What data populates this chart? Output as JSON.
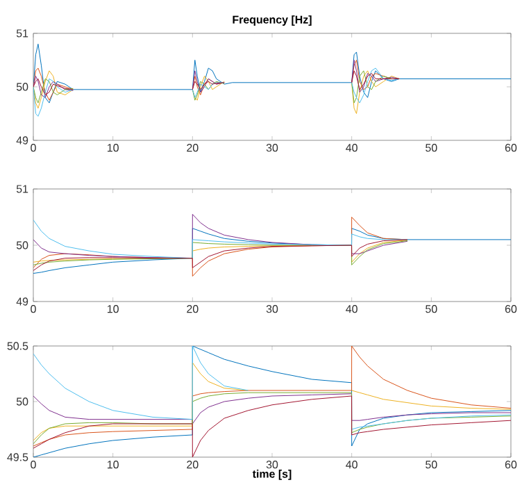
{
  "chart_data": [
    {
      "type": "line",
      "title": "Frequency [Hz]",
      "x": [
        0,
        0.3,
        0.6,
        1,
        1.5,
        2,
        2.5,
        3,
        4,
        5,
        6,
        8,
        20,
        20.3,
        20.6,
        21,
        21.5,
        22,
        22.5,
        23,
        24,
        25,
        27,
        30,
        40,
        40.3,
        40.6,
        41,
        41.5,
        42,
        42.5,
        43,
        44,
        45,
        46,
        48,
        60
      ],
      "xlim": [
        0,
        60
      ],
      "xticks": [
        0,
        10,
        20,
        30,
        40,
        50,
        60
      ],
      "ylim": [
        49,
        51
      ],
      "yticks": [
        49,
        50,
        51
      ],
      "series": [
        {
          "color": "#0072bd",
          "values": [
            50,
            50.6,
            50.8,
            50.4,
            49.8,
            49.7,
            49.9,
            50.1,
            50.05,
            49.95,
            49.95,
            49.95,
            49.95,
            50.5,
            50.2,
            49.9,
            50.1,
            50.35,
            50.3,
            50.15,
            50.05,
            50.08,
            50.08,
            50.08,
            50.08,
            50.6,
            50.65,
            50.2,
            49.9,
            49.8,
            50.1,
            50.3,
            50.15,
            50.1,
            50.15,
            50.15,
            50.15
          ]
        },
        {
          "color": "#d95319",
          "values": [
            50,
            50.3,
            50.35,
            50.2,
            49.9,
            49.75,
            49.9,
            50.05,
            50,
            49.95,
            null,
            null,
            49.95,
            50.2,
            50,
            49.85,
            50.05,
            50.15,
            50.1,
            50.05,
            50.08,
            null,
            null,
            null,
            50.08,
            50.4,
            50.5,
            50.1,
            49.95,
            50,
            50.2,
            50.25,
            50.2,
            50.15,
            50.15,
            null,
            null
          ]
        },
        {
          "color": "#edb120",
          "values": [
            50,
            49.7,
            49.6,
            49.8,
            50.1,
            50.3,
            50.2,
            49.9,
            49.85,
            49.95,
            null,
            null,
            49.95,
            49.8,
            49.75,
            50,
            50.2,
            50.1,
            49.95,
            50,
            50.1,
            null,
            null,
            null,
            50.08,
            49.6,
            49.5,
            49.9,
            50.2,
            50.3,
            50.1,
            50,
            50.1,
            50.2,
            50.15,
            null,
            null
          ]
        },
        {
          "color": "#7e2f8e",
          "values": [
            50,
            50.2,
            50.1,
            49.85,
            49.8,
            50,
            50.1,
            50.05,
            49.95,
            49.93,
            null,
            null,
            49.95,
            50.3,
            50.1,
            49.9,
            50,
            50.15,
            50.1,
            50.05,
            50.08,
            null,
            null,
            null,
            50.08,
            50.5,
            50.3,
            49.9,
            50,
            50.25,
            50.2,
            50.1,
            50.15,
            50.18,
            50.15,
            null,
            null
          ]
        },
        {
          "color": "#77ac30",
          "values": [
            50,
            49.8,
            49.7,
            49.9,
            50.15,
            50.1,
            49.9,
            49.85,
            49.95,
            49.97,
            null,
            null,
            49.95,
            49.75,
            49.85,
            50.1,
            50.05,
            49.95,
            50.05,
            50.1,
            50.06,
            null,
            null,
            null,
            50.08,
            49.7,
            49.8,
            50.2,
            50.3,
            50,
            49.95,
            50.1,
            50.2,
            50.15,
            50.15,
            null,
            null
          ]
        },
        {
          "color": "#4dbeee",
          "values": [
            50,
            49.5,
            49.45,
            49.6,
            49.9,
            50.15,
            50.1,
            50,
            49.9,
            49.95,
            null,
            null,
            49.95,
            49.8,
            49.9,
            50.05,
            50,
            49.95,
            50.05,
            50.08,
            50.08,
            null,
            null,
            null,
            50.08,
            49.9,
            49.8,
            49.7,
            49.85,
            50.1,
            50.3,
            50.35,
            50.15,
            50.12,
            50.15,
            null,
            null
          ]
        },
        {
          "color": "#a2142f",
          "values": [
            50,
            50.1,
            50.15,
            50,
            49.85,
            49.9,
            50.05,
            50.02,
            49.97,
            49.95,
            null,
            null,
            49.95,
            50.1,
            50.05,
            49.95,
            50.05,
            50.1,
            50.05,
            50.07,
            50.08,
            null,
            null,
            null,
            50.08,
            50.3,
            50.2,
            49.95,
            50.05,
            50.2,
            50.25,
            50.15,
            50.15,
            50.15,
            50.15,
            null,
            null
          ]
        }
      ]
    },
    {
      "type": "line",
      "x": [
        0,
        1,
        2,
        4,
        7,
        10,
        15,
        19.99,
        20,
        21,
        22,
        24,
        27,
        30,
        35,
        39.99,
        40,
        41,
        42,
        44,
        47,
        50,
        55,
        60
      ],
      "xlim": [
        0,
        60
      ],
      "xticks": [
        0,
        10,
        20,
        30,
        40,
        50,
        60
      ],
      "ylim": [
        49,
        51
      ],
      "yticks": [
        49,
        50,
        51
      ],
      "series": [
        {
          "color": "#0072bd",
          "values": [
            49.5,
            49.52,
            49.55,
            49.6,
            49.65,
            49.7,
            49.74,
            49.77,
            50.3,
            50.25,
            50.2,
            50.12,
            50.07,
            50.04,
            50.01,
            50,
            50.3,
            50.25,
            50.18,
            50.12,
            50.1,
            50.1,
            50.1,
            50.1
          ]
        },
        {
          "color": "#d95319",
          "values": [
            49.6,
            49.75,
            49.82,
            49.85,
            49.83,
            49.8,
            49.78,
            49.77,
            49.45,
            49.6,
            49.72,
            49.85,
            49.93,
            49.97,
            49.99,
            50,
            50.5,
            50.35,
            50.22,
            50.12,
            50.1,
            null,
            null,
            null
          ]
        },
        {
          "color": "#edb120",
          "values": [
            49.7,
            49.72,
            49.73,
            49.74,
            49.75,
            49.76,
            49.77,
            49.77,
            49.9,
            49.93,
            49.95,
            49.97,
            49.98,
            49.99,
            50,
            50,
            49.7,
            49.85,
            49.95,
            50.05,
            50.09,
            null,
            null,
            null
          ]
        },
        {
          "color": "#7e2f8e",
          "values": [
            50.1,
            49.95,
            49.88,
            49.85,
            49.82,
            49.8,
            49.78,
            49.77,
            50.55,
            50.4,
            50.3,
            50.18,
            50.1,
            50.05,
            50.01,
            50,
            49.85,
            49.85,
            49.9,
            50,
            50.07,
            null,
            null,
            null
          ]
        },
        {
          "color": "#77ac30",
          "values": [
            49.65,
            49.68,
            49.7,
            49.72,
            49.74,
            49.75,
            49.76,
            49.77,
            50.05,
            50.04,
            50.03,
            50.02,
            50.01,
            50,
            50,
            50,
            49.65,
            49.8,
            49.92,
            50.03,
            50.08,
            null,
            null,
            null
          ]
        },
        {
          "color": "#4dbeee",
          "values": [
            50.45,
            50.25,
            50.12,
            49.98,
            49.9,
            49.84,
            49.8,
            49.77,
            50.1,
            50.09,
            50.08,
            50.06,
            50.04,
            50.02,
            50.01,
            50,
            50.2,
            50.15,
            50.12,
            50.1,
            50.1,
            null,
            null,
            null
          ]
        },
        {
          "color": "#a2142f",
          "values": [
            49.55,
            49.65,
            49.72,
            49.77,
            49.78,
            49.78,
            49.77,
            49.77,
            49.6,
            49.7,
            49.8,
            49.9,
            49.95,
            49.98,
            49.99,
            50,
            49.8,
            49.95,
            50.02,
            50.08,
            50.1,
            null,
            null,
            null
          ]
        }
      ]
    },
    {
      "type": "line",
      "xlabel": "time [s]",
      "x": [
        0,
        1,
        2,
        4,
        7,
        10,
        15,
        19.99,
        20,
        21,
        22,
        24,
        27,
        30,
        35,
        39.99,
        40,
        41,
        42,
        44,
        47,
        50,
        55,
        60
      ],
      "xlim": [
        0,
        60
      ],
      "xticks": [
        0,
        10,
        20,
        30,
        40,
        50,
        60
      ],
      "ylim": [
        49.5,
        50.5
      ],
      "yticks": [
        49.5,
        50,
        50.5
      ],
      "series": [
        {
          "color": "#0072bd",
          "values": [
            49.5,
            49.52,
            49.54,
            49.58,
            49.62,
            49.65,
            49.68,
            49.7,
            50.5,
            50.47,
            50.44,
            50.38,
            50.32,
            50.27,
            50.2,
            50.17,
            49.6,
            49.75,
            49.8,
            49.85,
            49.88,
            49.9,
            49.91,
            49.92
          ]
        },
        {
          "color": "#d95319",
          "values": [
            49.6,
            49.63,
            49.66,
            49.7,
            49.72,
            49.73,
            49.74,
            49.75,
            50.05,
            50.07,
            50.08,
            50.09,
            50.1,
            50.1,
            50.1,
            50.1,
            50.5,
            50.4,
            50.32,
            50.2,
            50.1,
            50.03,
            49.97,
            49.94
          ]
        },
        {
          "color": "#edb120",
          "values": [
            49.65,
            49.72,
            49.76,
            49.78,
            49.78,
            49.78,
            49.78,
            49.78,
            50.35,
            50.25,
            50.18,
            50.12,
            50.1,
            null,
            null,
            null,
            50.1,
            50.08,
            50.06,
            50.02,
            49.99,
            49.96,
            49.94,
            49.93
          ]
        },
        {
          "color": "#7e2f8e",
          "values": [
            50.05,
            49.98,
            49.92,
            49.86,
            49.84,
            49.84,
            49.84,
            49.84,
            49.8,
            49.9,
            49.95,
            50,
            50.03,
            50.05,
            50.06,
            50.07,
            49.83,
            49.83,
            49.84,
            49.86,
            49.88,
            49.89,
            49.9,
            49.9
          ]
        },
        {
          "color": "#77ac30",
          "values": [
            49.62,
            49.7,
            49.76,
            49.8,
            49.81,
            49.81,
            49.8,
            49.8,
            50,
            50.03,
            50.05,
            50.07,
            50.08,
            50.08,
            50.08,
            50.08,
            49.72,
            49.75,
            49.77,
            49.8,
            49.83,
            49.85,
            49.86,
            49.87
          ]
        },
        {
          "color": "#4dbeee",
          "values": [
            50.43,
            50.33,
            50.25,
            50.12,
            50,
            49.92,
            49.86,
            49.84,
            50.5,
            50.35,
            50.25,
            50.14,
            50.1,
            null,
            null,
            null,
            49.75,
            49.77,
            49.78,
            49.8,
            49.83,
            49.85,
            49.87,
            49.88
          ]
        },
        {
          "color": "#a2142f",
          "values": [
            49.58,
            49.62,
            49.66,
            49.72,
            49.78,
            49.8,
            49.8,
            49.8,
            49.5,
            49.65,
            49.74,
            49.85,
            49.92,
            49.97,
            50.02,
            50.05,
            49.7,
            49.72,
            49.73,
            49.75,
            49.77,
            49.79,
            49.81,
            49.83
          ]
        }
      ]
    }
  ]
}
